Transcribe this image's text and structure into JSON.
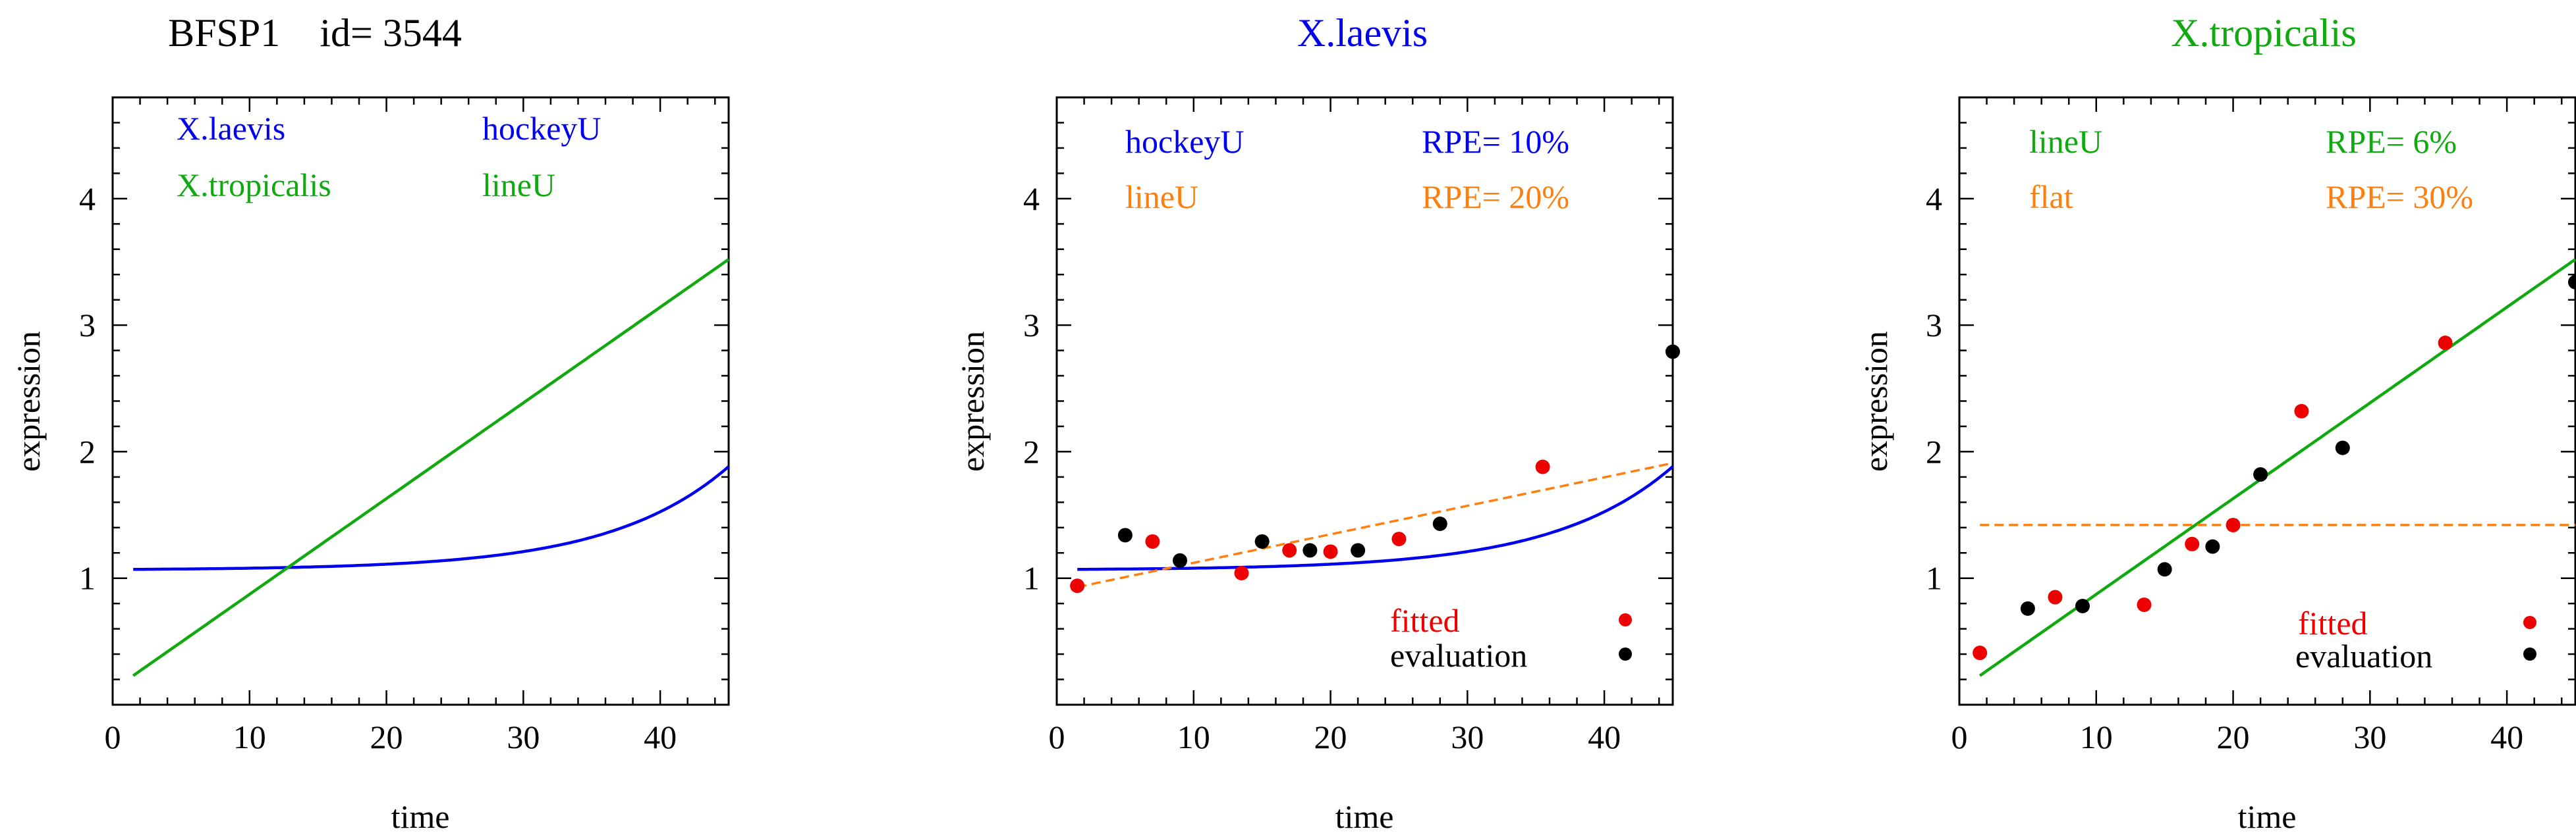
{
  "colors": {
    "blue": "#0000ee",
    "green": "#10aa10",
    "orange": "#ff7f0e",
    "red": "#ee0000",
    "black": "#000000"
  },
  "chart_data": [
    {
      "type": "line",
      "title": "BFSP1",
      "title_id": "id= 3544",
      "title_color": "#000000",
      "xlabel": "time",
      "ylabel": "expression",
      "xlim": [
        0,
        45
      ],
      "ylim": [
        0,
        4.8
      ],
      "xticks": [
        0,
        10,
        20,
        30,
        40
      ],
      "yticks": [
        1,
        2,
        3,
        4
      ],
      "legend": [
        {
          "text": "X.laevis",
          "color": "#0000ee",
          "pos": "top-left"
        },
        {
          "text": "hockeyU",
          "color": "#0000ee",
          "pos": "top-right"
        },
        {
          "text": "X.tropicalis",
          "color": "#10aa10",
          "pos": "top-left"
        },
        {
          "text": "lineU",
          "color": "#10aa10",
          "pos": "top-right"
        }
      ],
      "series": [
        {
          "name": "hockeyU",
          "color": "#0000ee",
          "style": "solid",
          "model": "hockey",
          "params": {
            "a": 1.07,
            "b": 0.0055,
            "k": 0.115,
            "t0": 1.5
          },
          "xrange": [
            1.5,
            45
          ]
        },
        {
          "name": "lineU",
          "color": "#10aa10",
          "style": "solid",
          "model": "line",
          "params": {
            "x1": 1.5,
            "y1": 0.23,
            "x2": 45,
            "y2": 3.52
          },
          "xrange": [
            1.5,
            45
          ]
        }
      ]
    },
    {
      "type": "scatter",
      "title": "X.laevis",
      "title_color": "#0000ee",
      "xlabel": "time",
      "ylabel": "expression",
      "xlim": [
        0,
        45
      ],
      "ylim": [
        0,
        4.8
      ],
      "xticks": [
        0,
        10,
        20,
        30,
        40
      ],
      "yticks": [
        1,
        2,
        3,
        4
      ],
      "legend": [
        {
          "text": "hockeyU",
          "color": "#0000ee",
          "pos": "top-left"
        },
        {
          "text": "RPE= 10%",
          "color": "#0000ee",
          "pos": "top-right"
        },
        {
          "text": "lineU",
          "color": "#ff7f0e",
          "pos": "top-left"
        },
        {
          "text": "RPE= 20%",
          "color": "#ff7f0e",
          "pos": "top-right"
        }
      ],
      "point_legend": [
        {
          "text": "fitted",
          "color": "#ee0000"
        },
        {
          "text": "evaluation",
          "color": "#000000"
        }
      ],
      "series": [
        {
          "name": "hockeyU",
          "color": "#0000ee",
          "style": "solid",
          "model": "hockey",
          "params": {
            "a": 1.07,
            "b": 0.0055,
            "k": 0.115,
            "t0": 1.5
          },
          "xrange": [
            1.5,
            45
          ]
        },
        {
          "name": "lineU",
          "color": "#ff7f0e",
          "style": "dashed",
          "model": "line",
          "params": {
            "x1": 1.5,
            "y1": 0.93,
            "x2": 45,
            "y2": 1.91
          },
          "xrange": [
            1.5,
            45
          ]
        }
      ],
      "points": {
        "fitted": [
          [
            1.5,
            0.94
          ],
          [
            7,
            1.29
          ],
          [
            13.5,
            1.04
          ],
          [
            17,
            1.22
          ],
          [
            20,
            1.21
          ],
          [
            25,
            1.31
          ],
          [
            35.5,
            1.88
          ]
        ],
        "evaluation": [
          [
            5,
            1.34
          ],
          [
            9,
            1.14
          ],
          [
            15,
            1.29
          ],
          [
            18.5,
            1.22
          ],
          [
            22,
            1.22
          ],
          [
            28,
            1.43
          ],
          [
            45,
            2.79
          ]
        ]
      }
    },
    {
      "type": "scatter",
      "title": "X.tropicalis",
      "title_color": "#10aa10",
      "xlabel": "time",
      "ylabel": "expression",
      "xlim": [
        0,
        45
      ],
      "ylim": [
        0,
        4.8
      ],
      "xticks": [
        0,
        10,
        20,
        30,
        40
      ],
      "yticks": [
        1,
        2,
        3,
        4
      ],
      "legend": [
        {
          "text": "lineU",
          "color": "#10aa10",
          "pos": "top-left"
        },
        {
          "text": "RPE= 6%",
          "color": "#10aa10",
          "pos": "top-right"
        },
        {
          "text": "flat",
          "color": "#ff7f0e",
          "pos": "top-left"
        },
        {
          "text": "RPE= 30%",
          "color": "#ff7f0e",
          "pos": "top-right"
        }
      ],
      "point_legend": [
        {
          "text": "fitted",
          "color": "#ee0000"
        },
        {
          "text": "evaluation",
          "color": "#000000"
        }
      ],
      "series": [
        {
          "name": "lineU",
          "color": "#10aa10",
          "style": "solid",
          "model": "line",
          "params": {
            "x1": 1.5,
            "y1": 0.23,
            "x2": 45,
            "y2": 3.52
          },
          "xrange": [
            1.5,
            45
          ]
        },
        {
          "name": "flat",
          "color": "#ff7f0e",
          "style": "dashed",
          "model": "line",
          "params": {
            "x1": 1.5,
            "y1": 1.42,
            "x2": 45,
            "y2": 1.42
          },
          "xrange": [
            1.5,
            45
          ]
        }
      ],
      "points": {
        "fitted": [
          [
            1.5,
            0.41
          ],
          [
            7,
            0.85
          ],
          [
            13.5,
            0.79
          ],
          [
            17,
            1.27
          ],
          [
            20,
            1.42
          ],
          [
            25,
            2.32
          ],
          [
            35.5,
            2.86
          ]
        ],
        "evaluation": [
          [
            5,
            0.76
          ],
          [
            9,
            0.78
          ],
          [
            15,
            1.07
          ],
          [
            18.5,
            1.25
          ],
          [
            22,
            1.82
          ],
          [
            28,
            2.03
          ],
          [
            45,
            3.34
          ]
        ]
      }
    }
  ]
}
